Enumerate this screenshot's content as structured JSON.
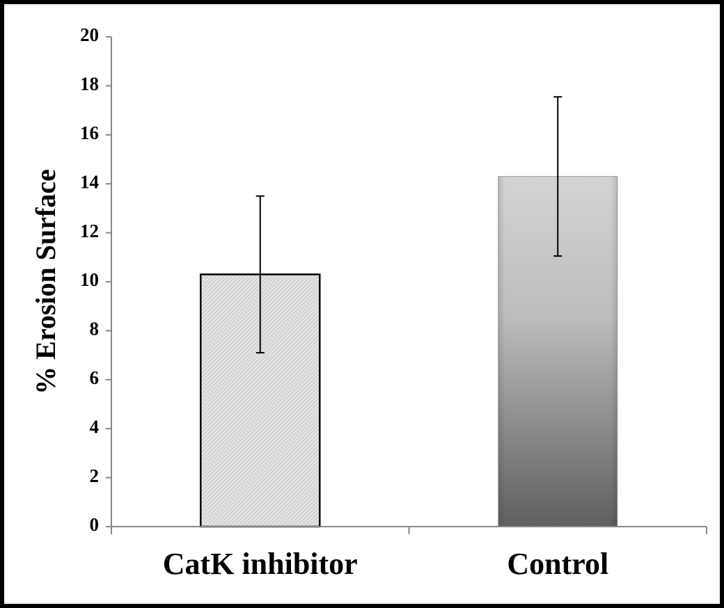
{
  "chart_data": {
    "type": "bar",
    "ylabel": "% Erosion Surface",
    "categories": [
      "CatK inhibitor",
      "Control"
    ],
    "values": [
      10.3,
      14.3
    ],
    "errors": [
      3.2,
      3.25
    ],
    "ylim": [
      0,
      20
    ],
    "yticks": [
      0,
      2,
      4,
      6,
      8,
      10,
      12,
      14,
      16,
      18,
      20
    ],
    "grid": false
  }
}
